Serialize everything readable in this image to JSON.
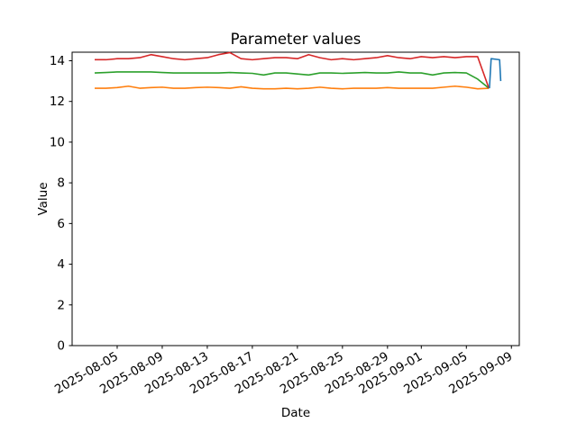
{
  "chart_data": {
    "type": "line",
    "title": "Parameter values",
    "xlabel": "Date",
    "ylabel": "Value",
    "grid": false,
    "legend_position": "none",
    "start_date": "2025-08-03",
    "x_unit": "days_since_start_date",
    "xlim_days": [
      -2.0,
      37.7
    ],
    "ylim": [
      0,
      14.42
    ],
    "y_ticks": [
      0,
      2,
      4,
      6,
      8,
      10,
      12,
      14
    ],
    "x_ticks": [
      {
        "day": 2,
        "label": "2025-08-05"
      },
      {
        "day": 6,
        "label": "2025-08-09"
      },
      {
        "day": 10,
        "label": "2025-08-13"
      },
      {
        "day": 14,
        "label": "2025-08-17"
      },
      {
        "day": 18,
        "label": "2025-08-21"
      },
      {
        "day": 22,
        "label": "2025-08-25"
      },
      {
        "day": 26,
        "label": "2025-08-29"
      },
      {
        "day": 29,
        "label": "2025-09-01"
      },
      {
        "day": 33,
        "label": "2025-09-05"
      },
      {
        "day": 37,
        "label": "2025-09-09"
      }
    ],
    "series": [
      {
        "name": "parameter-orange",
        "color": "#ff7f0e",
        "x": [
          0,
          1,
          2,
          3,
          4,
          5,
          6,
          7,
          8,
          9,
          10,
          11,
          12,
          13,
          14,
          15,
          16,
          17,
          18,
          19,
          20,
          21,
          22,
          23,
          24,
          25,
          26,
          27,
          28,
          29,
          30,
          31,
          32,
          33,
          34,
          35
        ],
        "values": [
          12.65,
          12.65,
          12.68,
          12.75,
          12.65,
          12.68,
          12.7,
          12.65,
          12.65,
          12.68,
          12.7,
          12.68,
          12.65,
          12.72,
          12.65,
          12.62,
          12.62,
          12.65,
          12.62,
          12.65,
          12.7,
          12.65,
          12.62,
          12.65,
          12.65,
          12.65,
          12.68,
          12.65,
          12.65,
          12.65,
          12.65,
          12.7,
          12.75,
          12.7,
          12.62,
          12.65
        ]
      },
      {
        "name": "parameter-green",
        "color": "#2ca02c",
        "x": [
          0,
          1,
          2,
          3,
          4,
          5,
          6,
          7,
          8,
          9,
          10,
          11,
          12,
          13,
          14,
          15,
          16,
          17,
          18,
          19,
          20,
          21,
          22,
          23,
          24,
          25,
          26,
          27,
          28,
          29,
          30,
          31,
          32,
          33,
          34,
          35
        ],
        "values": [
          13.4,
          13.42,
          13.45,
          13.45,
          13.45,
          13.45,
          13.42,
          13.4,
          13.4,
          13.4,
          13.4,
          13.4,
          13.42,
          13.4,
          13.38,
          13.3,
          13.4,
          13.4,
          13.35,
          13.3,
          13.4,
          13.4,
          13.38,
          13.4,
          13.42,
          13.4,
          13.4,
          13.45,
          13.4,
          13.4,
          13.3,
          13.4,
          13.42,
          13.4,
          13.1,
          12.65
        ]
      },
      {
        "name": "parameter-red",
        "color": "#d62728",
        "x": [
          0,
          1,
          2,
          3,
          4,
          5,
          6,
          7,
          8,
          9,
          10,
          11,
          12,
          13,
          14,
          15,
          16,
          17,
          18,
          19,
          20,
          21,
          22,
          23,
          24,
          25,
          26,
          27,
          28,
          29,
          30,
          31,
          32,
          33,
          34,
          35
        ],
        "values": [
          14.05,
          14.05,
          14.1,
          14.1,
          14.15,
          14.3,
          14.2,
          14.1,
          14.05,
          14.1,
          14.15,
          14.3,
          14.4,
          14.1,
          14.05,
          14.1,
          14.15,
          14.15,
          14.1,
          14.3,
          14.15,
          14.05,
          14.1,
          14.05,
          14.1,
          14.15,
          14.25,
          14.15,
          14.1,
          14.2,
          14.15,
          14.2,
          14.15,
          14.2,
          14.2,
          12.65
        ]
      },
      {
        "name": "parameter-blue",
        "color": "#1f77b4",
        "x": [
          35.05,
          35.2,
          35.95,
          36.05
        ],
        "values": [
          12.65,
          14.1,
          14.05,
          13.0
        ]
      }
    ]
  }
}
